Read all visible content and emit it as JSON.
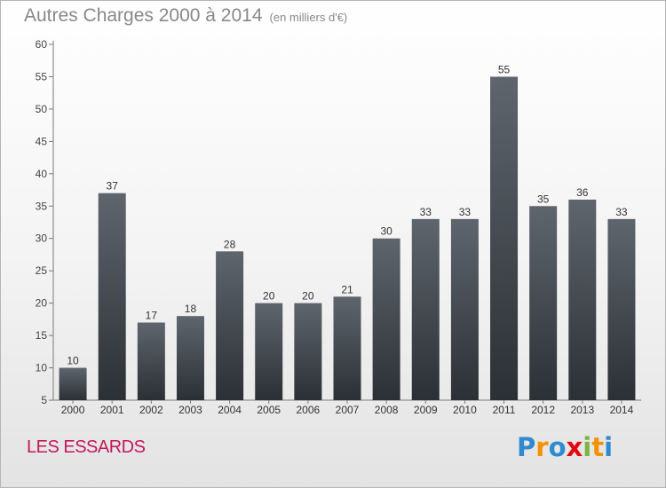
{
  "header": {
    "title": "Autres Charges 2000 à 2014",
    "unit": "(en milliers d'€)"
  },
  "footer": {
    "place": "LES ESSARDS",
    "logo": "Proxiti"
  },
  "colors": {
    "bar_top": "#5e656d",
    "bar_bottom": "#2b3035",
    "place_text": "#c2185b",
    "title_text": "#888888"
  },
  "chart_data": {
    "type": "bar",
    "title": "Autres Charges 2000 à 2014",
    "subtitle": "(en milliers d'€)",
    "categories": [
      "2000",
      "2001",
      "2002",
      "2003",
      "2004",
      "2005",
      "2006",
      "2007",
      "2008",
      "2009",
      "2010",
      "2011",
      "2012",
      "2013",
      "2014"
    ],
    "values": [
      10,
      37,
      17,
      18,
      28,
      20,
      20,
      21,
      30,
      33,
      33,
      55,
      35,
      36,
      33
    ],
    "ylim": [
      5,
      60
    ],
    "yticks": [
      5,
      10,
      15,
      20,
      25,
      30,
      35,
      40,
      45,
      50,
      55,
      60
    ],
    "grid": false,
    "data_labels": true
  }
}
